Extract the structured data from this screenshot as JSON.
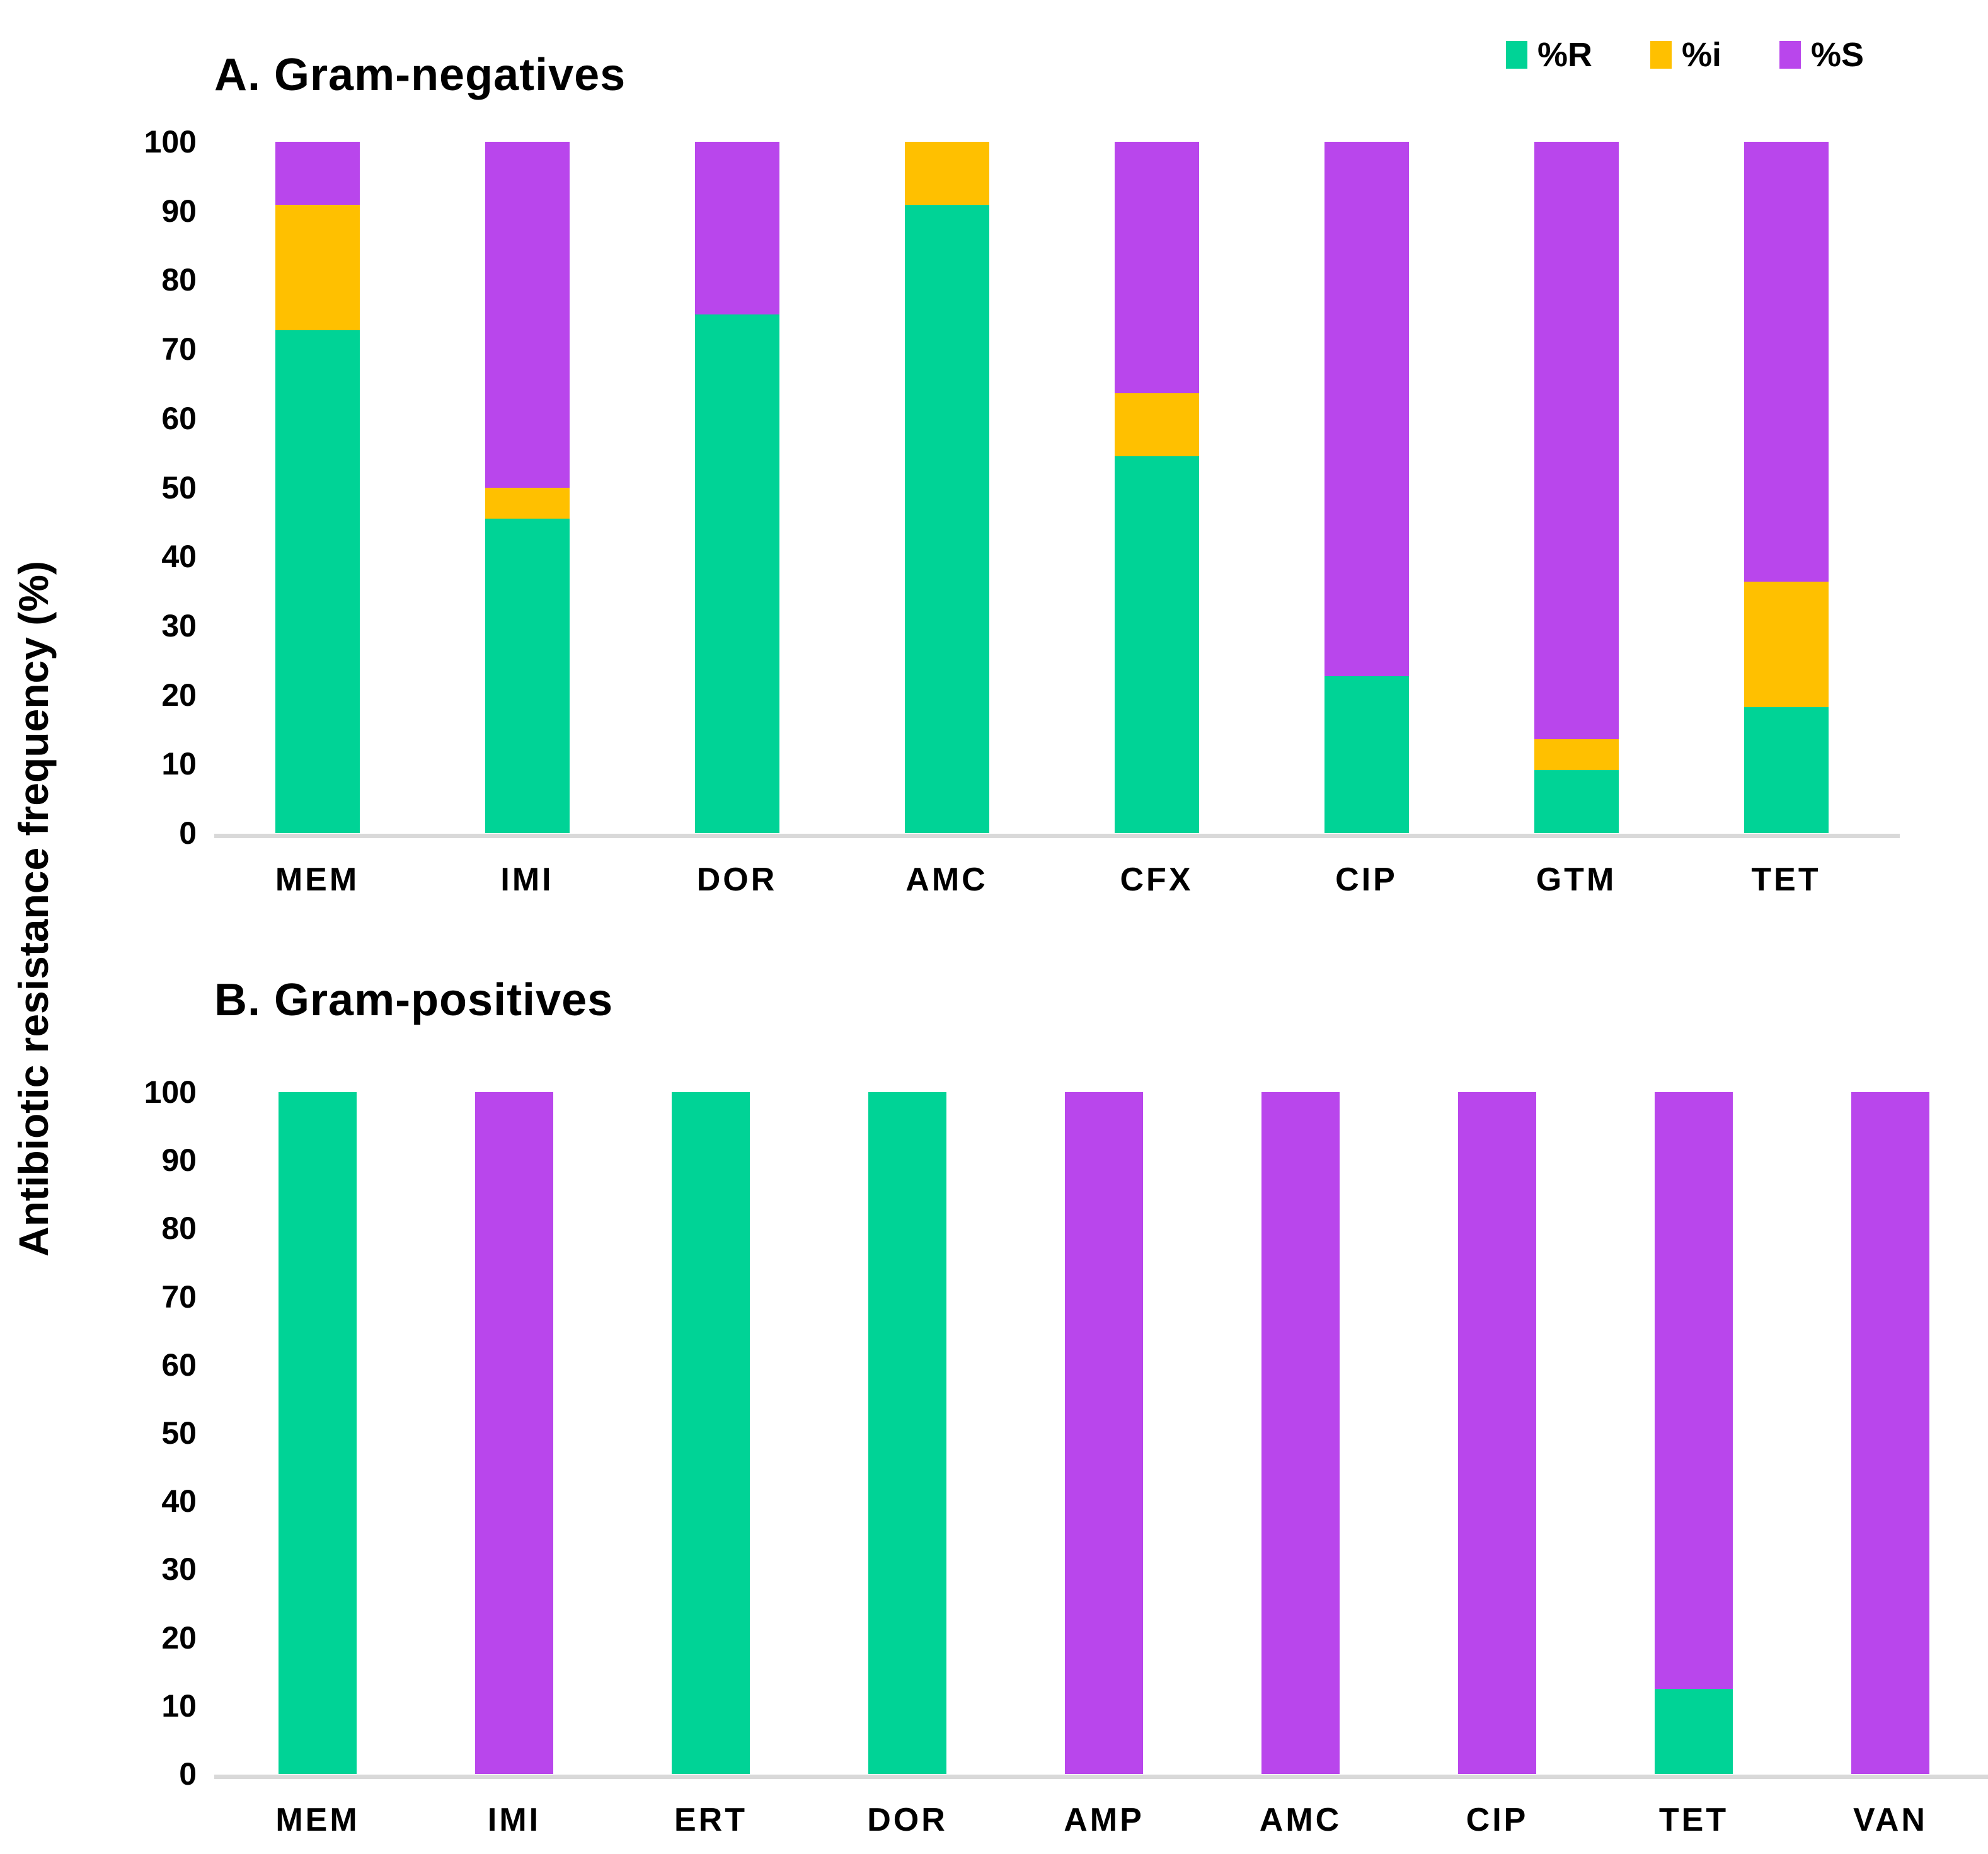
{
  "ylabel": "Antibiotic resistance frequency (%)",
  "legend": {
    "items": [
      {
        "label": "%R",
        "color": "#00D396"
      },
      {
        "label": "%i",
        "color": "#FFC000"
      },
      {
        "label": "%S",
        "color": "#B946EC"
      }
    ]
  },
  "colors": {
    "resistant_green": "#00D396",
    "intermediate_yellow": "#FFC000",
    "susceptible_purple": "#B946EC",
    "axis_line": "#D9D9D9",
    "text": "#000000"
  },
  "chart_data": [
    {
      "type": "bar",
      "subtype": "stacked-100-percent",
      "panel": "A",
      "title": "A. Gram-negatives",
      "categories": [
        "MEM",
        "IMI",
        "DOR",
        "AMC",
        "CFX",
        "CIP",
        "GTM",
        "TET"
      ],
      "series": [
        {
          "name": "%R",
          "color": "#00D396",
          "values": [
            72.7,
            45.5,
            75.0,
            90.9,
            54.5,
            22.7,
            9.1,
            18.2
          ]
        },
        {
          "name": "%i",
          "color": "#FFC000",
          "values": [
            18.2,
            4.5,
            0,
            9.1,
            9.1,
            0,
            4.5,
            18.2
          ]
        },
        {
          "name": "%S",
          "color": "#B946EC",
          "values": [
            9.1,
            50.0,
            25.0,
            0,
            36.4,
            77.3,
            86.4,
            63.6
          ]
        }
      ],
      "xlabel": "",
      "ylabel": "Antibiotic resistance frequency (%)",
      "ylim": [
        0,
        100
      ],
      "yticks": [
        0,
        10,
        20,
        30,
        40,
        50,
        60,
        70,
        80,
        90,
        100
      ],
      "grid": false,
      "legend_position": "top-right"
    },
    {
      "type": "bar",
      "subtype": "stacked-100-percent",
      "panel": "B",
      "title": "B. Gram-positives",
      "categories": [
        "MEM",
        "IMI",
        "ERT",
        "DOR",
        "AMP",
        "AMC",
        "CIP",
        "TET",
        "VAN"
      ],
      "series": [
        {
          "name": "%R",
          "color": "#00D396",
          "values": [
            100,
            0,
            100,
            100,
            0,
            0,
            0,
            12.5,
            0
          ]
        },
        {
          "name": "%i",
          "color": "#FFC000",
          "values": [
            0,
            0,
            0,
            0,
            0,
            0,
            0,
            0,
            0
          ]
        },
        {
          "name": "%S",
          "color": "#B946EC",
          "values": [
            0,
            100,
            0,
            0,
            100,
            100,
            100,
            87.5,
            100
          ]
        }
      ],
      "xlabel": "",
      "ylabel": "Antibiotic resistance frequency (%)",
      "ylim": [
        0,
        100
      ],
      "yticks": [
        0,
        10,
        20,
        30,
        40,
        50,
        60,
        70,
        80,
        90,
        100
      ],
      "grid": false,
      "legend_position": "shared-top-right"
    }
  ]
}
